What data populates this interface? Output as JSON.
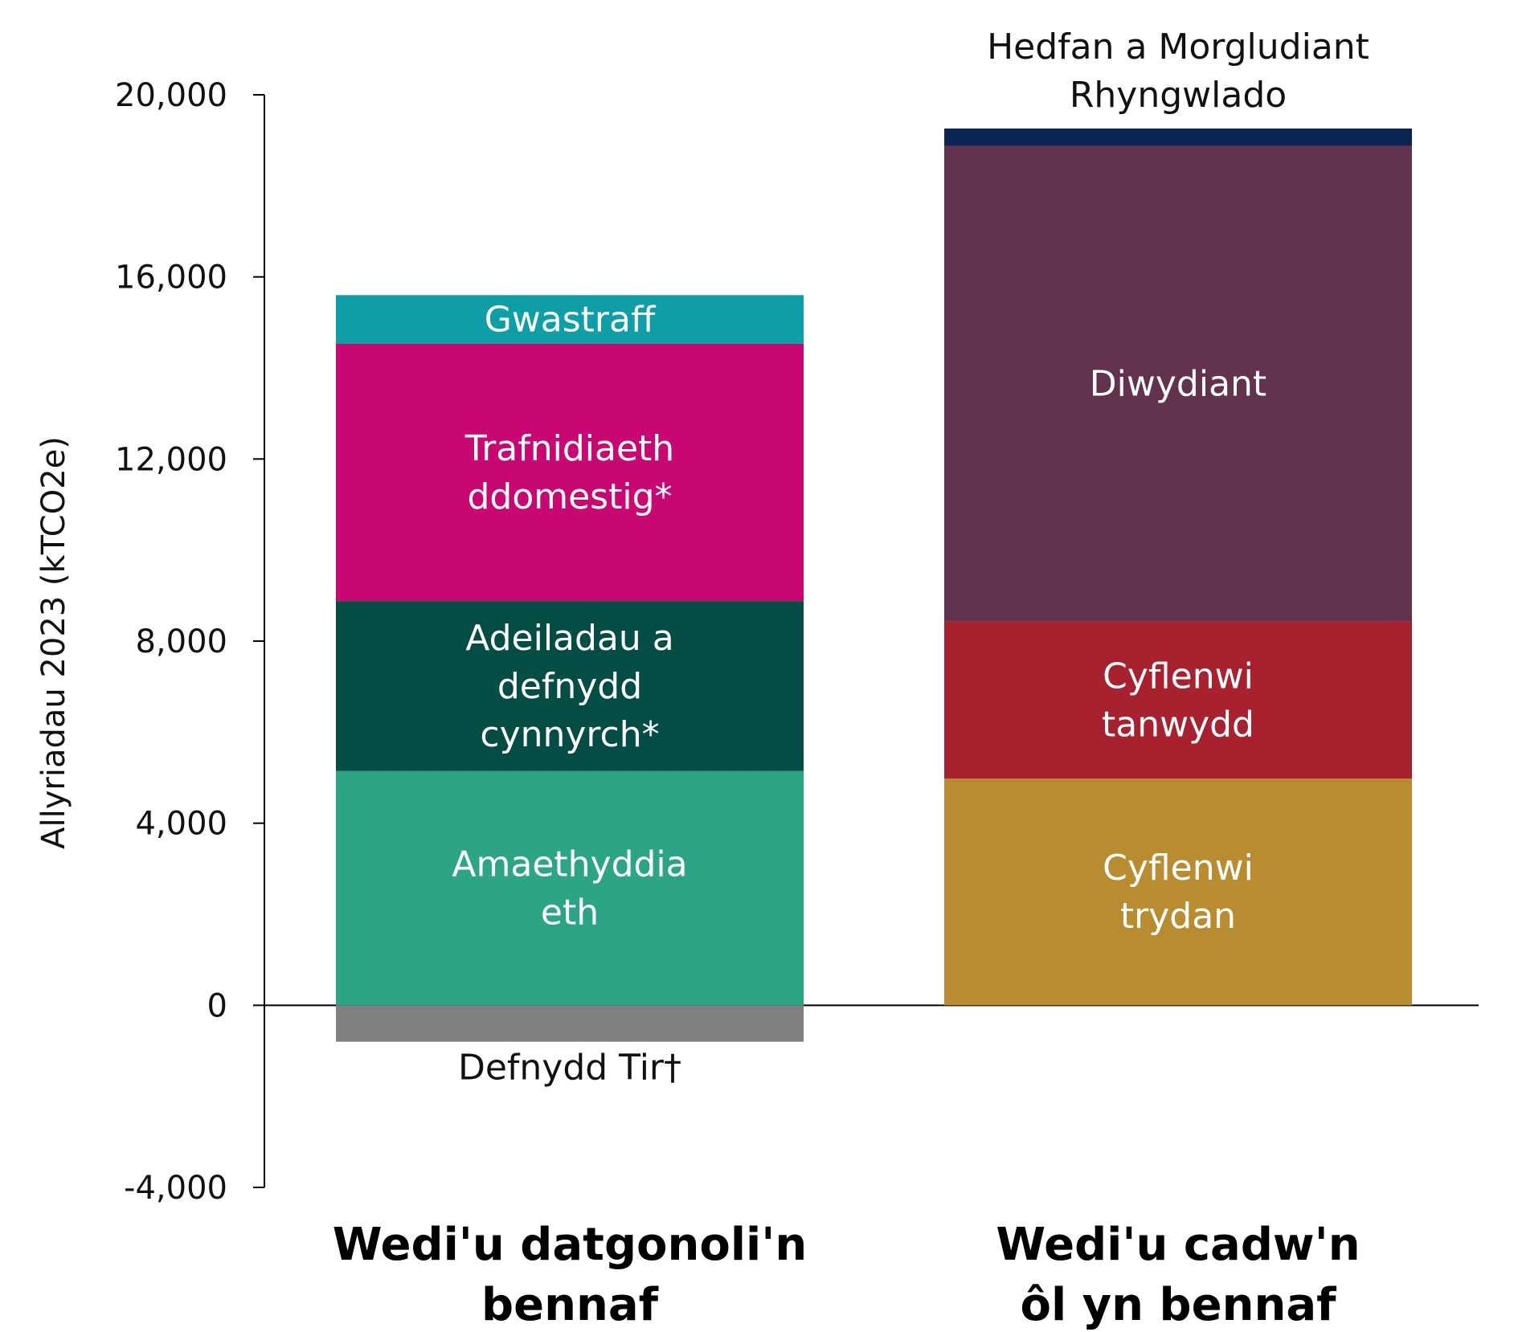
{
  "chart_data": {
    "type": "bar",
    "stacked": true,
    "ylabel": "Allyriadau 2023 (kTCO2e)",
    "ylim": [
      -4000,
      20000
    ],
    "yticks": [
      "-4,000",
      "0",
      "4,000",
      "8,000",
      "12,000",
      "16,000",
      "20,000"
    ],
    "ytick_values": [
      -4000,
      0,
      4000,
      8000,
      12000,
      16000,
      20000
    ],
    "categories": [
      "Wedi'u datgonoli'n bennaf",
      "Wedi'u cadw'n ôl yn bennaf"
    ],
    "bars": [
      {
        "category": "Wedi'u datgonoli'n bennaf",
        "segments": [
          {
            "name": "Defnydd Tir†",
            "label_lines": [
              "Defnydd Tir†"
            ],
            "value": -800,
            "color": "#808080",
            "label_outside": true
          },
          {
            "name": "Amaethyddiaeth",
            "label_lines": [
              "Amaethyddia",
              "eth"
            ],
            "value": 5150,
            "color": "#2ca586"
          },
          {
            "name": "Adeiladau a defnydd cynnyrch*",
            "label_lines": [
              "Adeiladau a",
              "defnydd",
              "cynnyrch*"
            ],
            "value": 3730,
            "color": "#034d44"
          },
          {
            "name": "Trafnidiaeth ddomestig*",
            "label_lines": [
              "Trafnidiaeth",
              "ddomestig*"
            ],
            "value": 5650,
            "color": "#c90772"
          },
          {
            "name": "Gwastraff",
            "label_lines": [
              "Gwastraff"
            ],
            "value": 1070,
            "color": "#0d9fa5"
          }
        ]
      },
      {
        "category": "Wedi'u cadw'n ôl yn bennaf",
        "segments": [
          {
            "name": "Cyflenwi trydan",
            "label_lines": [
              "Cyflenwi",
              "trydan"
            ],
            "value": 4980,
            "color": "#b98c30"
          },
          {
            "name": "Cyflenwi tanwydd",
            "label_lines": [
              "Cyflenwi",
              "tanwydd"
            ],
            "value": 3450,
            "color": "#a8212e"
          },
          {
            "name": "Diwydiant",
            "label_lines": [
              "Diwydiant"
            ],
            "value": 10450,
            "color": "#63324f"
          },
          {
            "name": "Hedfan a Morgludiant Rhyngwlado",
            "label_lines": [
              "Hedfan a Morgludiant",
              "Rhyngwlado"
            ],
            "value": 380,
            "color": "#0b2451",
            "label_outside": true
          }
        ]
      }
    ],
    "category_labels": [
      [
        "Wedi'u datgonoli'n",
        "bennaf"
      ],
      [
        "Wedi'u cadw'n",
        "ôl yn bennaf"
      ]
    ],
    "grid": false,
    "legend": "none"
  }
}
